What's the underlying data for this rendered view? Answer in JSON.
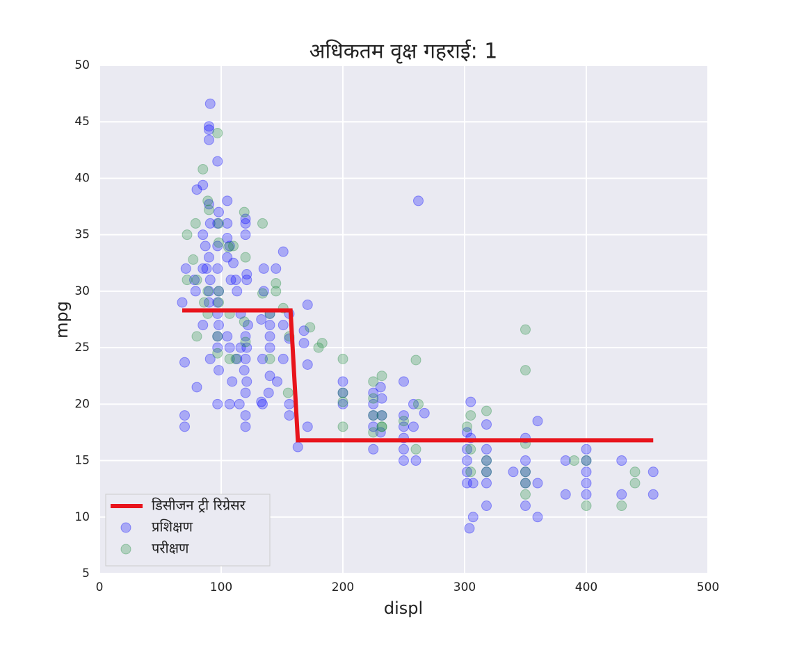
{
  "chart_data": {
    "type": "scatter",
    "title": "अधिकतम वृक्ष गहराई: 1",
    "xlabel": "displ",
    "ylabel": "mpg",
    "xlim": [
      0,
      500
    ],
    "ylim": [
      5,
      50
    ],
    "xticks": [
      0,
      100,
      200,
      300,
      400,
      500
    ],
    "yticks": [
      5,
      10,
      15,
      20,
      25,
      30,
      35,
      40,
      45,
      50
    ],
    "grid": true,
    "legend": "lower left",
    "series": [
      {
        "name": "डिसीजन ट्री रिग्रेसर",
        "type": "line",
        "color": "#e8141c",
        "x": [
          68,
          157,
          163,
          455
        ],
        "values": [
          28.3,
          28.3,
          16.8,
          16.8
        ]
      },
      {
        "name": "प्रशिक्षण",
        "type": "scatter",
        "color": "#0000ff",
        "x": [
          91,
          90,
          90,
          90,
          97,
          85,
          80,
          262,
          105,
          90,
          98,
          120,
          120,
          91,
          97,
          105,
          85,
          120,
          105,
          97,
          87,
          107,
          151,
          90,
          105,
          110,
          135,
          145,
          85,
          97,
          88,
          71,
          121,
          91,
          78,
          121,
          108,
          112,
          135,
          98,
          79,
          90,
          113,
          68,
          90,
          97,
          171,
          97,
          116,
          140,
          156,
          98,
          133,
          140,
          151,
          122,
          85,
          168,
          97,
          105,
          120,
          140,
          156,
          97,
          107,
          116,
          121,
          140,
          168,
          91,
          113,
          120,
          134,
          151,
          70,
          98,
          119,
          171,
          121,
          140,
          146,
          109,
          200,
          250,
          225,
          231,
          120,
          139,
          200,
          232,
          107,
          97,
          134,
          115,
          156,
          200,
          225,
          258,
          305,
          80,
          70,
          70,
          120,
          133,
          156,
          225,
          232,
          250,
          250,
          258,
          267,
          171,
          120,
          225,
          231,
          250,
          302,
          305,
          318,
          350,
          360,
          163,
          225,
          250,
          260,
          250,
          302,
          318,
          302,
          318,
          350,
          383,
          400,
          400,
          429,
          302,
          318,
          340,
          350,
          400,
          455,
          302,
          307,
          318,
          350,
          360,
          400,
          318,
          350,
          383,
          400,
          429,
          455,
          307,
          360,
          304
        ],
        "values": [
          46.6,
          44.6,
          44.3,
          43.4,
          41.5,
          39.4,
          39,
          38,
          38,
          37.7,
          37,
          36.4,
          36,
          36,
          36,
          36,
          35,
          35,
          34.7,
          34,
          34,
          34,
          33.5,
          33,
          33,
          32.5,
          32,
          32,
          32,
          32,
          32,
          32,
          31.5,
          31,
          31,
          31,
          31,
          31,
          30,
          30,
          30,
          30,
          30,
          29,
          29,
          29,
          28.8,
          28,
          28,
          28,
          28,
          27,
          27.5,
          27,
          27,
          27,
          27,
          26.5,
          26,
          26,
          26,
          26,
          25.8,
          25,
          25,
          25,
          25,
          25,
          25.4,
          24,
          24,
          24,
          24,
          24,
          23.7,
          23,
          23,
          23.5,
          22,
          22.5,
          22,
          22,
          22,
          22,
          21,
          21.5,
          21,
          21,
          21,
          20.5,
          20,
          20,
          20,
          20,
          20,
          20,
          20,
          20,
          20.2,
          21.5,
          19,
          18,
          19,
          20.2,
          19,
          19,
          19,
          19,
          18,
          18,
          19.2,
          18,
          18,
          18,
          17.5,
          17,
          17.5,
          17,
          18.2,
          17,
          18.5,
          16.2,
          16,
          16,
          15,
          15,
          16,
          16,
          15,
          15,
          15,
          15,
          16,
          15,
          15,
          14,
          14,
          14,
          14,
          14,
          14,
          13,
          13,
          13,
          13,
          13,
          13,
          11,
          11,
          12,
          12,
          12,
          12,
          10,
          10,
          9
        ]
      },
      {
        "name": "परीक्षण",
        "type": "scatter",
        "color": "#1e8c3c",
        "x": [
          97,
          85,
          89,
          90,
          72,
          79,
          98,
          134,
          119,
          98,
          110,
          106,
          120,
          77,
          145,
          72,
          80,
          89,
          98,
          134,
          145,
          86,
          98,
          151,
          89,
          107,
          140,
          119,
          173,
          80,
          97,
          120,
          156,
          183,
          97,
          107,
          112,
          140,
          200,
          260,
          180,
          225,
          232,
          155,
          200,
          225,
          262,
          200,
          200,
          225,
          232,
          232,
          250,
          302,
          318,
          350,
          350,
          350,
          225,
          260,
          305,
          305,
          305,
          318,
          350,
          350,
          390,
          400,
          400,
          440,
          440,
          429,
          350,
          318,
          232
        ],
        "values": [
          44,
          40.8,
          38,
          37.2,
          35,
          36,
          36,
          36,
          37,
          34.3,
          34,
          33.9,
          33,
          32.8,
          30.7,
          31,
          31,
          30,
          30,
          29.8,
          30,
          29,
          29,
          28.5,
          28,
          28,
          28,
          27.3,
          26.8,
          26,
          26,
          25.5,
          26,
          25.4,
          24.5,
          24,
          24,
          24,
          24,
          23.9,
          25,
          22,
          22.5,
          21,
          21,
          20.5,
          20,
          20.2,
          18,
          19,
          19,
          18,
          18.5,
          18,
          19.4,
          26.6,
          23,
          16.5,
          17.5,
          16,
          19,
          16,
          14,
          14,
          14,
          13,
          15,
          15,
          11,
          14,
          13,
          11,
          12,
          15,
          18
        ]
      }
    ]
  }
}
